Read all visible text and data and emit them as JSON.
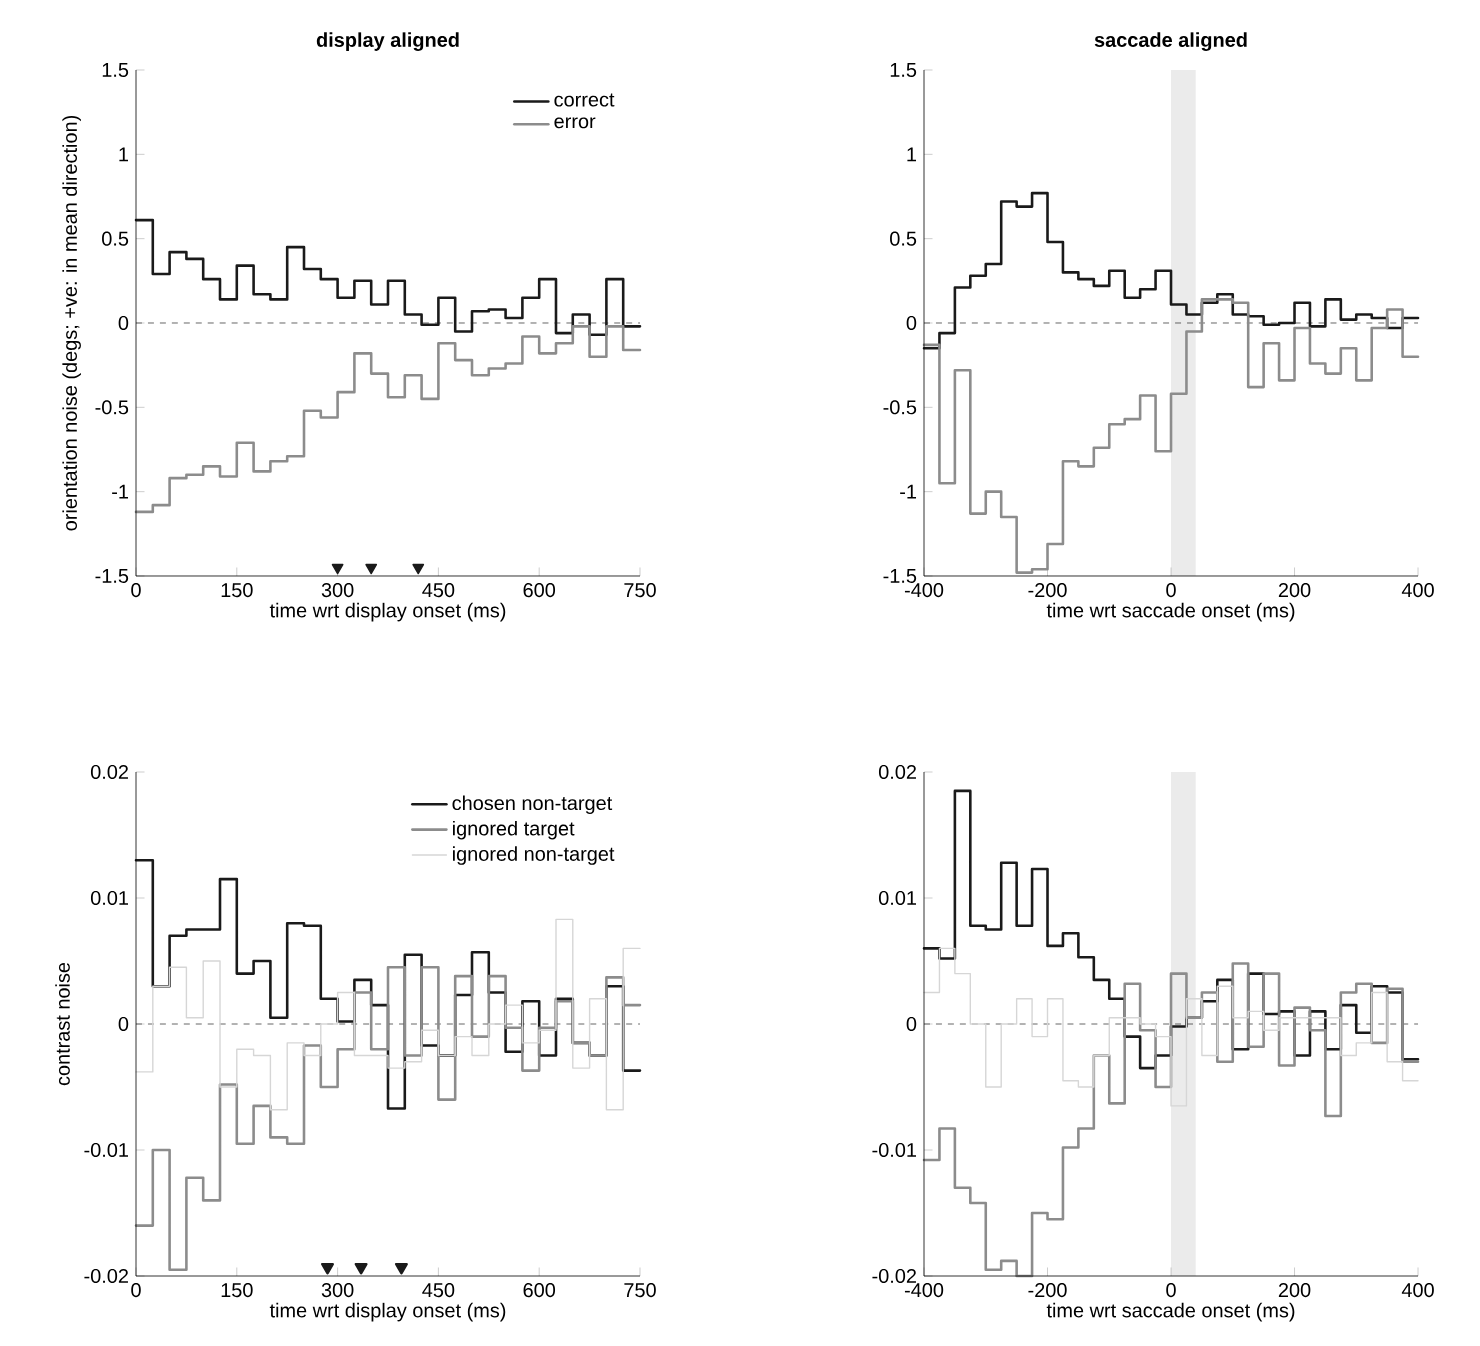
{
  "chart_data": [
    {
      "type": "step",
      "title": "display aligned",
      "xlabel": "time wrt display onset (ms)",
      "ylabel": "orientation noise (degs; +ve: in mean direction)",
      "xlim": [
        0,
        750
      ],
      "ylim": [
        -1.5,
        1.5
      ],
      "xticks": [
        0,
        150,
        300,
        450,
        600,
        750
      ],
      "yticks": [
        -1.5,
        -1,
        -0.5,
        0,
        0.5,
        1,
        1.5
      ],
      "legend": "top right",
      "ref_lines": [
        {
          "axis": "y",
          "value": 0,
          "color": "#404040",
          "line_style": "dashed"
        }
      ],
      "series": [
        {
          "name": "correct",
          "color": "#1a1a1a",
          "x": [
            0,
            25,
            50,
            75,
            100,
            125,
            150,
            175,
            200,
            225,
            250,
            275,
            300,
            325,
            350,
            375,
            400,
            425,
            450,
            475,
            500,
            525,
            550,
            575,
            600,
            625,
            650,
            675,
            700,
            725,
            750
          ],
          "values": [
            0.61,
            0.29,
            0.42,
            0.38,
            0.26,
            0.14,
            0.34,
            0.17,
            0.14,
            0.45,
            0.32,
            0.26,
            0.15,
            0.25,
            0.11,
            0.25,
            0.05,
            -0.01,
            0.15,
            -0.05,
            0.07,
            0.08,
            0.03,
            0.15,
            0.26,
            -0.06,
            0.05,
            -0.07,
            0.26,
            -0.02,
            -0.02
          ]
        },
        {
          "name": "error",
          "color": "#8c8c8c",
          "x": [
            0,
            25,
            50,
            75,
            100,
            125,
            150,
            175,
            200,
            225,
            250,
            275,
            300,
            325,
            350,
            375,
            400,
            425,
            450,
            475,
            500,
            525,
            550,
            575,
            600,
            625,
            650,
            675,
            700,
            725,
            750
          ],
          "values": [
            -1.12,
            -1.08,
            -0.92,
            -0.9,
            -0.85,
            -0.91,
            -0.71,
            -0.88,
            -0.82,
            -0.79,
            -0.52,
            -0.56,
            -0.41,
            -0.18,
            -0.3,
            -0.44,
            -0.31,
            -0.45,
            -0.12,
            -0.22,
            -0.31,
            -0.27,
            -0.24,
            -0.08,
            -0.18,
            -0.12,
            -0.02,
            -0.2,
            -0.02,
            -0.16,
            -0.16
          ]
        },
        {
          "type": "scatter",
          "marker": "triangle",
          "color": "#1a1a1a",
          "x": [
            300,
            350,
            420
          ],
          "values": [
            -1.45,
            -1.45,
            -1.45
          ]
        }
      ]
    },
    {
      "type": "step",
      "title": "saccade aligned",
      "xlabel": "time wrt saccade onset (ms)",
      "xlim": [
        -400,
        400
      ],
      "ylim": [
        -1.5,
        1.5
      ],
      "xticks": [
        -400,
        -200,
        0,
        200,
        400
      ],
      "yticks": [
        -1.5,
        -1,
        -0.5,
        0,
        0.5,
        1,
        1.5
      ],
      "ref_lines": [
        {
          "axis": "y",
          "value": 0,
          "color": "#404040",
          "line_style": "dashed"
        }
      ],
      "bands": [
        {
          "axis": "x",
          "from": 0,
          "to": 40,
          "color": "#ebebeb"
        }
      ],
      "series": [
        {
          "color": "#1a1a1a",
          "x": [
            -400,
            -375,
            -350,
            -325,
            -300,
            -275,
            -250,
            -225,
            -200,
            -175,
            -150,
            -125,
            -100,
            -75,
            -50,
            -25,
            0,
            25,
            50,
            75,
            100,
            125,
            150,
            175,
            200,
            225,
            250,
            275,
            300,
            325,
            350,
            375,
            400
          ],
          "values": [
            -0.15,
            -0.06,
            0.21,
            0.28,
            0.35,
            0.72,
            0.69,
            0.77,
            0.48,
            0.3,
            0.26,
            0.22,
            0.31,
            0.15,
            0.2,
            0.31,
            0.11,
            0.05,
            0.12,
            0.17,
            0.05,
            0.04,
            -0.01,
            0.0,
            0.12,
            -0.02,
            0.14,
            0.02,
            0.05,
            0.03,
            -0.03,
            0.03,
            0.03
          ]
        },
        {
          "color": "#8c8c8c",
          "x": [
            -400,
            -375,
            -350,
            -325,
            -300,
            -275,
            -250,
            -225,
            -200,
            -175,
            -150,
            -125,
            -100,
            -75,
            -50,
            -25,
            0,
            25,
            50,
            75,
            100,
            125,
            150,
            175,
            200,
            225,
            250,
            275,
            300,
            325,
            350,
            375,
            400
          ],
          "values": [
            -0.13,
            -0.95,
            -0.28,
            -1.13,
            -1.0,
            -1.15,
            -1.48,
            -1.46,
            -1.31,
            -0.82,
            -0.85,
            -0.74,
            -0.6,
            -0.57,
            -0.43,
            -0.76,
            -0.42,
            -0.05,
            0.14,
            0.14,
            0.12,
            -0.38,
            -0.12,
            -0.34,
            -0.03,
            -0.24,
            -0.3,
            -0.15,
            -0.34,
            -0.03,
            0.08,
            -0.2,
            -0.2
          ]
        }
      ]
    },
    {
      "type": "step",
      "xlabel": "time wrt display onset (ms)",
      "ylabel": "contrast noise",
      "xlim": [
        0,
        750
      ],
      "ylim": [
        -0.02,
        0.02
      ],
      "xticks": [
        0,
        150,
        300,
        450,
        600,
        750
      ],
      "yticks": [
        -0.02,
        -0.01,
        0,
        0.01,
        0.02
      ],
      "legend": "top right",
      "ref_lines": [
        {
          "axis": "y",
          "value": 0,
          "color": "#404040",
          "line_style": "dashed"
        }
      ],
      "series": [
        {
          "name": "chosen non-target",
          "color": "#1a1a1a",
          "x": [
            0,
            25,
            50,
            75,
            100,
            125,
            150,
            175,
            200,
            225,
            250,
            275,
            300,
            325,
            350,
            375,
            400,
            425,
            450,
            475,
            500,
            525,
            550,
            575,
            600,
            625,
            650,
            675,
            700,
            725,
            750
          ],
          "values": [
            0.013,
            0.003,
            0.007,
            0.0075,
            0.0075,
            0.0115,
            0.004,
            0.005,
            0.0005,
            0.008,
            0.0078,
            0.002,
            0.0002,
            0.0035,
            0.0015,
            -0.0067,
            0.0055,
            -0.0017,
            -0.0025,
            0.0023,
            0.0057,
            0.0025,
            -0.0022,
            0.0018,
            -0.0025,
            0.002,
            -0.0015,
            -0.0025,
            0.003,
            -0.0037,
            -0.0037
          ]
        },
        {
          "name": "ignored target",
          "color": "#8c8c8c",
          "x": [
            0,
            25,
            50,
            75,
            100,
            125,
            150,
            175,
            200,
            225,
            250,
            275,
            300,
            325,
            350,
            375,
            400,
            425,
            450,
            475,
            500,
            525,
            550,
            575,
            600,
            625,
            650,
            675,
            700,
            725,
            750
          ],
          "values": [
            -0.016,
            -0.01,
            -0.0195,
            -0.0122,
            -0.014,
            -0.0048,
            -0.0095,
            -0.0065,
            -0.009,
            -0.0095,
            -0.0017,
            -0.005,
            -0.002,
            0.0025,
            -0.002,
            0.0045,
            -0.0025,
            0.0045,
            -0.006,
            0.0038,
            -0.001,
            0.0038,
            -0.0003,
            -0.0037,
            -0.0003,
            0.0018,
            -0.0015,
            -0.0025,
            0.0037,
            0.0015,
            0.0015
          ]
        },
        {
          "name": "ignored non-target",
          "color": "#d6d6d6",
          "x": [
            0,
            25,
            50,
            75,
            100,
            125,
            150,
            175,
            200,
            225,
            250,
            275,
            300,
            325,
            350,
            375,
            400,
            425,
            450,
            475,
            500,
            525,
            550,
            575,
            600,
            625,
            650,
            675,
            700,
            725,
            750
          ],
          "values": [
            -0.0038,
            0.003,
            0.0045,
            0.0005,
            0.005,
            -0.005,
            -0.002,
            -0.0025,
            -0.0068,
            -0.0015,
            -0.0025,
            0.0,
            0.0025,
            -0.0025,
            -0.0025,
            -0.0035,
            -0.003,
            -0.0005,
            -0.0025,
            -0.001,
            -0.0025,
            0.0,
            0.0015,
            -0.0015,
            -0.0005,
            0.0083,
            -0.0035,
            0.002,
            -0.0068,
            0.006,
            0.006
          ]
        },
        {
          "type": "scatter",
          "marker": "triangle",
          "color": "#1a1a1a",
          "x": [
            285,
            335,
            395
          ],
          "values": [
            -0.0193,
            -0.0193,
            -0.0193
          ]
        }
      ]
    },
    {
      "type": "step",
      "xlabel": "time wrt saccade onset (ms)",
      "xlim": [
        -400,
        400
      ],
      "ylim": [
        -0.02,
        0.02
      ],
      "xticks": [
        -400,
        -200,
        0,
        200,
        400
      ],
      "yticks": [
        -0.02,
        -0.01,
        0,
        0.01,
        0.02
      ],
      "ref_lines": [
        {
          "axis": "y",
          "value": 0,
          "color": "#404040",
          "line_style": "dashed"
        }
      ],
      "bands": [
        {
          "axis": "x",
          "from": 0,
          "to": 40,
          "color": "#ebebeb"
        }
      ],
      "series": [
        {
          "color": "#1a1a1a",
          "x": [
            -400,
            -375,
            -350,
            -325,
            -300,
            -275,
            -250,
            -225,
            -200,
            -175,
            -150,
            -125,
            -100,
            -75,
            -50,
            -25,
            0,
            25,
            50,
            75,
            100,
            125,
            150,
            175,
            200,
            225,
            250,
            275,
            300,
            325,
            350,
            375,
            400
          ],
          "values": [
            0.006,
            0.0052,
            0.0185,
            0.0078,
            0.0075,
            0.0128,
            0.0078,
            0.0123,
            0.0062,
            0.0072,
            0.0053,
            0.0035,
            0.002,
            -0.001,
            -0.0035,
            -0.0025,
            -0.0002,
            0.0005,
            0.0018,
            0.0035,
            -0.002,
            0.004,
            0.0008,
            0.001,
            -0.0025,
            0.001,
            -0.002,
            0.0015,
            -0.0007,
            0.003,
            0.0025,
            -0.0028,
            -0.0028
          ]
        },
        {
          "color": "#8c8c8c",
          "x": [
            -400,
            -375,
            -350,
            -325,
            -300,
            -275,
            -250,
            -225,
            -200,
            -175,
            -150,
            -125,
            -100,
            -75,
            -50,
            -25,
            0,
            25,
            50,
            75,
            100,
            125,
            150,
            175,
            200,
            225,
            250,
            275,
            300,
            325,
            350,
            375,
            400
          ],
          "values": [
            -0.0108,
            -0.0083,
            -0.013,
            -0.0142,
            -0.0195,
            -0.0188,
            -0.02,
            -0.015,
            -0.0155,
            -0.0098,
            -0.0083,
            -0.0025,
            -0.0063,
            0.0032,
            -0.0005,
            -0.005,
            0.004,
            0.0005,
            0.0025,
            -0.003,
            0.0048,
            -0.0018,
            0.004,
            -0.0033,
            0.0013,
            -0.0005,
            -0.0073,
            0.0025,
            0.0032,
            -0.0015,
            0.0028,
            -0.003,
            -0.003
          ]
        },
        {
          "color": "#d6d6d6",
          "x": [
            -400,
            -375,
            -350,
            -325,
            -300,
            -275,
            -250,
            -225,
            -200,
            -175,
            -150,
            -125,
            -100,
            -75,
            -50,
            -25,
            0,
            25,
            50,
            75,
            100,
            125,
            150,
            175,
            200,
            225,
            250,
            275,
            300,
            325,
            350,
            375,
            400
          ],
          "values": [
            0.0025,
            0.006,
            0.004,
            0.0,
            -0.005,
            0.0,
            0.002,
            -0.001,
            0.002,
            -0.0045,
            -0.005,
            -0.0025,
            0.0005,
            0.0005,
            0.0,
            -0.001,
            -0.0065,
            0.002,
            -0.0025,
            0.003,
            0.0005,
            0.001,
            -0.0005,
            0.0005,
            0.0005,
            0.0005,
            0.0005,
            -0.0025,
            -0.0015,
            0.0025,
            -0.003,
            -0.0045,
            -0.0045
          ]
        }
      ]
    }
  ]
}
